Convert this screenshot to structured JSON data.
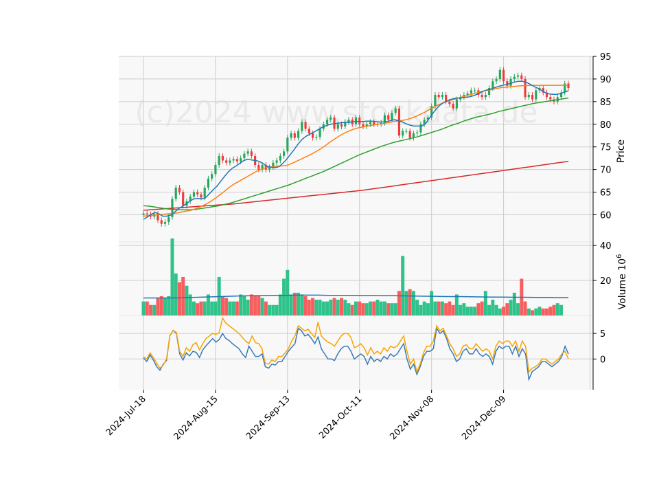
{
  "watermark": "(c)2024 www.stockdata.de",
  "chart_data": {
    "type": "candlestick",
    "title": "",
    "x_ticks": [
      "2024-Jul-18",
      "2024-Aug-15",
      "2024-Sep-13",
      "2024-Oct-11",
      "2024-Nov-08",
      "2024-Dec-09"
    ],
    "x_tick_index": [
      0,
      20,
      40,
      60,
      80,
      100
    ],
    "price_panel": {
      "ylabel": "Price",
      "ylim": [
        54,
        95
      ],
      "yticks": [
        60,
        65,
        70,
        75,
        80,
        85,
        90,
        95
      ],
      "grid": true,
      "close": [
        60.3,
        60.1,
        59.6,
        60.2,
        58.8,
        58.0,
        58.4,
        59.5,
        63.5,
        66.0,
        65.0,
        62.0,
        63.0,
        64.0,
        65.0,
        64.5,
        63.8,
        66.0,
        68.0,
        69.0,
        71.0,
        73.0,
        72.0,
        71.5,
        72.0,
        72.3,
        71.8,
        72.5,
        73.5,
        74.0,
        73.0,
        71.0,
        70.0,
        71.0,
        70.0,
        70.5,
        71.5,
        72.0,
        73.0,
        74.0,
        77.0,
        78.0,
        77.0,
        78.5,
        80.5,
        79.0,
        78.0,
        77.0,
        77.2,
        79.0,
        80.0,
        81.0,
        81.5,
        79.0,
        80.0,
        79.5,
        80.5,
        81.0,
        80.0,
        81.5,
        80.0,
        79.5,
        80.0,
        80.5,
        80.0,
        80.0,
        80.3,
        82.0,
        81.0,
        82.5,
        83.5,
        77.5,
        78.5,
        78.5,
        77.0,
        78.0,
        78.2,
        80.0,
        81.0,
        81.5,
        84.0,
        86.5,
        86.0,
        86.5,
        85.0,
        84.5,
        83.5,
        85.5,
        86.0,
        86.5,
        86.8,
        87.5,
        87.5,
        86.5,
        86.0,
        86.5,
        88.0,
        89.5,
        90.0,
        92.0,
        89.5,
        88.5,
        90.0,
        90.5,
        90.8,
        90.0,
        86.0,
        86.5,
        85.5,
        87.5,
        88.0,
        87.0,
        86.0,
        85.5,
        85.0,
        86.0,
        87.0,
        89.0,
        88.0
      ],
      "sma10": [
        59.0,
        59.5,
        60.1,
        60.5,
        60.2,
        59.7,
        59.7,
        59.9,
        60.5,
        61.3,
        61.8,
        62.4,
        63.0,
        63.5,
        63.6,
        63.5,
        63.7,
        64.6,
        65.5,
        66.3,
        67.4,
        68.5,
        69.5,
        70.3,
        70.8,
        71.4,
        72.0,
        72.3,
        72.1,
        72.0,
        71.8,
        71.3,
        70.7,
        70.5,
        70.4,
        70.6,
        71.3,
        72.2,
        73.3,
        74.4,
        75.6,
        76.6,
        77.3,
        77.8,
        78.2,
        78.7,
        79.2,
        79.6,
        79.9,
        80.1,
        80.2,
        80.3,
        80.4,
        80.4,
        80.5,
        80.6,
        80.6,
        80.6,
        80.7,
        80.7,
        80.6,
        80.5,
        80.5,
        80.6,
        80.8,
        81.0,
        80.8,
        80.5,
        80.1,
        79.8,
        79.6,
        79.6,
        79.6,
        80.1,
        81.3,
        82.5,
        83.6,
        84.4,
        84.9,
        85.3,
        85.6,
        85.8,
        85.8,
        85.9,
        86.0,
        86.2,
        86.5,
        86.9,
        87.3,
        87.6,
        87.8,
        88.1,
        88.4,
        88.6,
        88.8,
        89.0,
        89.3,
        89.5,
        89.5,
        89.3,
        88.9,
        88.4,
        88.0,
        87.5,
        87.0,
        86.7,
        86.6,
        86.6,
        86.8,
        87.1,
        87.4
      ],
      "sma20": [
        59.7,
        59.8,
        59.9,
        60.0,
        60.1,
        60.2,
        60.3,
        60.4,
        60.6,
        60.8,
        61.0,
        61.4,
        61.8,
        62.3,
        62.9,
        63.6,
        64.4,
        65.2,
        66.1,
        66.8,
        67.4,
        68.0,
        68.6,
        69.2,
        69.8,
        70.2,
        70.5,
        70.6,
        70.7,
        70.8,
        70.9,
        71.3,
        71.8,
        72.3,
        72.8,
        73.3,
        73.9,
        74.5,
        75.2,
        76.0,
        76.7,
        77.4,
        78.0,
        78.5,
        78.9,
        79.2,
        79.4,
        79.6,
        79.8,
        80.0,
        80.1,
        80.3,
        80.5,
        80.7,
        80.8,
        81.0,
        81.3,
        81.7,
        82.2,
        82.7,
        83.3,
        83.9,
        84.4,
        84.8,
        85.2,
        85.5,
        85.8,
        86.1,
        86.4,
        86.7,
        87.0,
        87.3,
        87.5,
        87.7,
        87.9,
        88.1,
        88.2,
        88.3,
        88.4,
        88.5,
        88.5,
        88.6,
        88.6,
        88.6,
        88.6,
        88.6,
        88.6,
        88.6,
        88.6,
        88.5
      ],
      "sma50": [
        62.0,
        61.9,
        61.7,
        61.5,
        61.3,
        61.2,
        61.1,
        61.1,
        61.1,
        61.2,
        61.4,
        61.6,
        61.8,
        62.0,
        62.3,
        62.6,
        63.0,
        63.4,
        63.8,
        64.2,
        64.6,
        65.0,
        65.4,
        65.8,
        66.2,
        66.6,
        67.1,
        67.6,
        68.1,
        68.6,
        69.1,
        69.6,
        70.2,
        70.8,
        71.4,
        72.0,
        72.6,
        73.2,
        73.7,
        74.2,
        74.7,
        75.2,
        75.6,
        76.0,
        76.3,
        76.6,
        76.9,
        77.2,
        77.6,
        78.0,
        78.4,
        78.8,
        79.3,
        79.8,
        80.2,
        80.7,
        81.1,
        81.5,
        81.8,
        82.1,
        82.4,
        82.8,
        83.1,
        83.4,
        83.7,
        84.0,
        84.3,
        84.6,
        84.8,
        85.0,
        85.2,
        85.4,
        85.6,
        85.8
      ],
      "sma200": [
        61.0,
        61.2,
        61.4,
        61.6,
        61.8,
        62.0,
        62.2,
        62.4,
        62.7,
        63.0,
        63.3,
        63.6,
        63.9,
        64.2,
        64.5,
        64.8,
        65.1,
        65.4,
        65.8,
        66.2,
        66.6,
        67.0,
        67.4,
        67.8,
        68.2,
        68.6,
        69.0,
        69.4,
        69.8,
        70.2,
        70.6,
        71.0,
        71.4,
        71.8
      ],
      "series_colors": {
        "up": "#26a65b",
        "down": "#ef3b3b",
        "sma10": "#1f77b4",
        "sma20": "#ff7f0e",
        "sma50": "#2ca02c",
        "sma200": "#d62728"
      }
    },
    "volume_panel": {
      "ylabel": "Volume 10^6",
      "ylim": [
        0,
        42
      ],
      "yticks": [
        20,
        40
      ],
      "values": [
        8,
        8,
        6,
        6,
        10,
        11,
        10,
        11,
        44,
        24,
        19,
        22,
        17,
        12,
        8,
        7,
        8,
        8,
        12,
        8,
        8,
        22,
        11,
        10,
        8,
        8,
        8,
        12,
        11,
        9,
        12,
        11,
        11,
        10,
        8,
        6,
        6,
        6,
        12,
        21,
        26,
        12,
        13,
        13,
        12,
        11,
        9,
        10,
        9,
        9,
        8,
        8,
        9,
        10,
        9,
        10,
        9,
        7,
        6,
        8,
        8,
        7,
        7,
        8,
        8,
        9,
        8,
        8,
        7,
        7,
        7,
        14,
        34,
        14,
        15,
        14,
        9,
        6,
        8,
        7,
        14,
        8,
        8,
        8,
        7,
        8,
        6,
        12,
        6,
        7,
        5,
        5,
        5,
        7,
        8,
        14,
        6,
        9,
        6,
        4,
        5,
        7,
        9,
        13,
        7,
        21,
        8,
        4,
        3,
        4,
        5,
        4,
        4,
        5,
        6,
        7,
        6
      ],
      "ma": [
        10.0,
        10.0,
        10.0,
        10.0,
        10.2,
        10.4,
        10.6,
        10.8,
        11.0,
        11.2,
        11.3,
        11.4,
        11.5,
        11.5,
        11.6,
        11.6,
        11.6,
        11.5,
        11.5,
        11.5,
        11.4,
        11.4,
        11.3,
        11.3,
        11.2,
        11.1,
        11.0,
        10.9,
        10.8,
        10.8,
        10.7,
        10.6,
        10.5,
        10.5,
        10.4,
        10.4,
        10.3,
        10.3,
        10.2,
        10.2
      ]
    },
    "indicator_panel": {
      "ylim": [
        -6,
        8.5
      ],
      "yticks": [
        0,
        5
      ],
      "series": [
        {
          "values": [
            0.2,
            -0.5,
            0.8,
            -0.2,
            -1.5,
            -2.2,
            -1.0,
            -0.3,
            4.5,
            5.6,
            5.0,
            1.0,
            -0.2,
            1.2,
            0.6,
            1.5,
            1.3,
            0.3,
            1.8,
            2.6,
            3.3,
            4.0,
            3.3,
            3.8,
            5.0,
            4.0,
            3.6,
            3.0,
            2.5,
            2.0,
            1.0,
            0.3,
            2.5,
            1.5,
            0.5,
            0.5,
            1.0,
            -1.5,
            -1.8,
            -1.0,
            -1.2,
            -0.5,
            -0.5,
            0.5,
            1.5,
            2.3,
            3.0,
            6.0,
            5.5,
            4.5,
            4.8,
            4.0,
            3.0,
            4.3,
            2.0,
            1.0,
            0.0,
            0.0,
            -0.3,
            1.0,
            2.0,
            2.5,
            2.5,
            1.5,
            0.0,
            0.5,
            1.0,
            0.5,
            -1.0,
            0.5,
            -0.5,
            0.0,
            -0.5,
            0.5,
            0.0,
            1.0,
            0.5,
            1.0,
            2.0,
            3.0,
            0.0,
            -2.0,
            -1.0,
            -3.0,
            -1.5,
            0.5,
            1.5,
            1.5,
            2.0,
            6.0,
            5.0,
            5.5,
            4.0,
            2.0,
            1.0,
            -0.5,
            0.0,
            1.5,
            2.0,
            1.0,
            1.0,
            2.0,
            1.0,
            0.5,
            1.0,
            0.5,
            -1.0,
            1.5,
            2.5,
            2.0,
            2.5,
            2.5,
            1.0,
            2.5,
            0.5,
            2.0,
            1.0,
            -4.0,
            -2.5,
            -2.0,
            -1.5,
            -0.5,
            -0.5,
            -1.0,
            -1.5,
            -1.0,
            -0.5,
            0.5,
            2.5,
            1.0
          ],
          "color": "#3a7ab5"
        },
        {
          "values": [
            0.5,
            0.0,
            1.2,
            0.3,
            -0.8,
            -1.8,
            -1.2,
            0.0,
            4.5,
            5.6,
            5.2,
            1.5,
            0.5,
            2.2,
            1.5,
            2.8,
            3.2,
            1.8,
            3.0,
            4.0,
            4.5,
            5.0,
            4.8,
            5.2,
            8.0,
            7.0,
            6.5,
            6.0,
            5.5,
            5.0,
            4.2,
            3.5,
            3.0,
            4.5,
            3.2,
            3.0,
            2.0,
            -0.8,
            -1.0,
            -0.2,
            -0.5,
            0.5,
            0.5,
            1.2,
            2.0,
            3.5,
            4.5,
            6.5,
            6.0,
            5.5,
            5.8,
            5.0,
            4.2,
            7.2,
            4.5,
            3.8,
            3.3,
            3.0,
            2.5,
            3.5,
            4.5,
            5.0,
            5.0,
            4.2,
            2.2,
            2.5,
            3.0,
            2.2,
            0.8,
            2.2,
            1.0,
            1.5,
            1.0,
            2.2,
            1.5,
            2.5,
            2.2,
            2.5,
            3.5,
            4.5,
            1.5,
            -1.0,
            0.0,
            -2.5,
            -1.0,
            1.2,
            2.5,
            2.5,
            3.5,
            6.5,
            5.5,
            6.0,
            4.5,
            3.0,
            2.0,
            0.5,
            1.0,
            2.5,
            2.8,
            2.0,
            2.0,
            3.0,
            2.2,
            1.5,
            2.0,
            1.5,
            0.0,
            2.5,
            3.5,
            3.0,
            3.5,
            3.5,
            2.5,
            3.5,
            1.5,
            3.5,
            2.5,
            -2.5,
            -1.8,
            -1.5,
            -1.0,
            0.0,
            0.0,
            -0.5,
            -1.0,
            -0.5,
            0.0,
            1.0,
            1.5,
            0.0
          ],
          "color": "#f7a400"
        }
      ]
    }
  }
}
